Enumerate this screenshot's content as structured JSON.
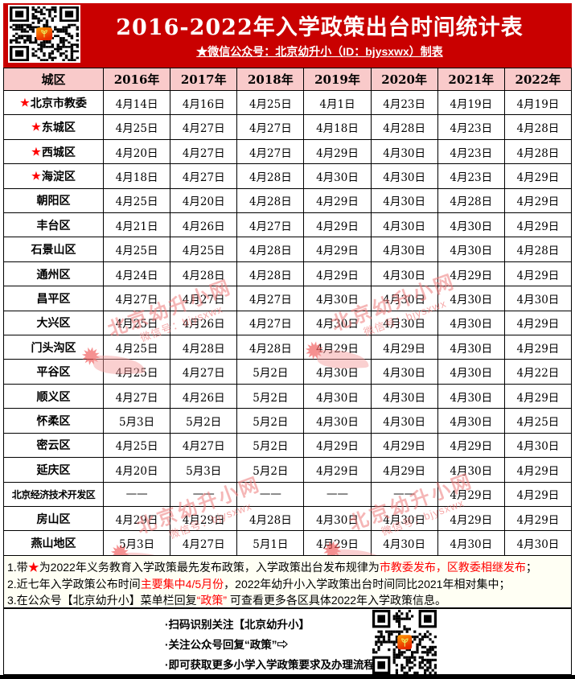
{
  "header": {
    "title": "2016-2022年入学政策出台时间统计表",
    "subtitle": "★微信公众号：北京幼升小（ID：bjysxwx）制表"
  },
  "colors": {
    "header_red": "#c90000",
    "table_header_pink": "#f9caca",
    "accent_red": "#ff0000",
    "watermark_pink": "#ec7a7a"
  },
  "icons": {
    "top_qr": "qr-code-icon",
    "bottom_qr": "qr-code-icon",
    "star": "star-icon",
    "arrow": "right-arrow-icon",
    "logo": "sprout-logo-icon"
  },
  "table": {
    "columns": [
      "城区",
      "2016年",
      "2017年",
      "2018年",
      "2019年",
      "2020年",
      "2021年",
      "2022年"
    ],
    "rows": [
      {
        "star": true,
        "district": "北京市教委",
        "dates": [
          "4月14日",
          "4月16日",
          "4月25日",
          "4月1日",
          "4月23日",
          "4月19日",
          "4月19日"
        ]
      },
      {
        "star": true,
        "district": "东城区",
        "dates": [
          "4月25日",
          "4月27日",
          "4月27日",
          "4月18日",
          "4月28日",
          "4月23日",
          "4月28日"
        ]
      },
      {
        "star": true,
        "district": "西城区",
        "dates": [
          "4月20日",
          "4月27日",
          "4月27日",
          "4月29日",
          "4月30日",
          "4月23日",
          "4月28日"
        ]
      },
      {
        "star": true,
        "district": "海淀区",
        "dates": [
          "4月18日",
          "4月27日",
          "4月28日",
          "4月30日",
          "4月30日",
          "4月23日",
          "4月29日"
        ]
      },
      {
        "star": false,
        "district": "朝阳区",
        "dates": [
          "4月25日",
          "4月20日",
          "4月28日",
          "4月29日",
          "4月30日",
          "4月28日",
          "4月29日"
        ]
      },
      {
        "star": false,
        "district": "丰台区",
        "dates": [
          "4月21日",
          "4月26日",
          "4月27日",
          "4月29日",
          "4月30日",
          "4月30日",
          "4月29日"
        ]
      },
      {
        "star": false,
        "district": "石景山区",
        "dates": [
          "4月25日",
          "4月25日",
          "4月28日",
          "4月29日",
          "4月30日",
          "4月30日",
          "4月28日"
        ]
      },
      {
        "star": false,
        "district": "通州区",
        "dates": [
          "4月24日",
          "4月28日",
          "4月28日",
          "4月29日",
          "4月30日",
          "4月29日",
          "4月29日"
        ]
      },
      {
        "star": false,
        "district": "昌平区",
        "dates": [
          "4月27日",
          "4月27日",
          "4月27日",
          "4月30日",
          "4月30日",
          "4月30日",
          "4月30日"
        ]
      },
      {
        "star": false,
        "district": "大兴区",
        "dates": [
          "4月25日",
          "4月26日",
          "4月27日",
          "4月30日",
          "4月30日",
          "4月30日",
          "4月29日"
        ]
      },
      {
        "star": false,
        "district": "门头沟区",
        "dates": [
          "4月25日",
          "4月28日",
          "4月28日",
          "4月29日",
          "4月29日",
          "4月30日",
          "4月29日"
        ]
      },
      {
        "star": false,
        "district": "平谷区",
        "dates": [
          "4月25日",
          "4月27日",
          "5月2日",
          "4月30日",
          "4月30日",
          "4月30日",
          "4月22日"
        ]
      },
      {
        "star": false,
        "district": "顺义区",
        "dates": [
          "4月27日",
          "4月26日",
          "5月2日",
          "4月30日",
          "4月30日",
          "4月30日",
          "4月29日"
        ]
      },
      {
        "star": false,
        "district": "怀柔区",
        "dates": [
          "5月3日",
          "5月2日",
          "5月2日",
          "4月30日",
          "4月30日",
          "4月30日",
          "4月25日"
        ]
      },
      {
        "star": false,
        "district": "密云区",
        "dates": [
          "4月25日",
          "4月27日",
          "5月2日",
          "4月29日",
          "4月29日",
          "4月29日",
          "4月30日"
        ]
      },
      {
        "star": false,
        "district": "延庆区",
        "dates": [
          "4月20日",
          "5月3日",
          "5月2日",
          "4月29日",
          "4月29日",
          "4月30日",
          "4月29日"
        ]
      },
      {
        "star": false,
        "district": "北京经济技术开发区",
        "dates": [
          "——",
          "——",
          "——",
          "——",
          "——",
          "4月29日",
          "4月29日"
        ]
      },
      {
        "star": false,
        "district": "房山区",
        "dates": [
          "4月29日",
          "4月29日",
          "4月28日",
          "4月30日",
          "4月30日",
          "4月29日",
          "4月29日"
        ]
      },
      {
        "star": false,
        "district": "燕山地区",
        "dates": [
          "5月3日",
          "4月27日",
          "5月1日",
          "4月29日",
          "4月30日",
          "4月30日",
          "4月30日"
        ]
      }
    ]
  },
  "notes": [
    [
      {
        "t": "1.带"
      },
      {
        "t": "★",
        "red": true
      },
      {
        "t": "为2022年义务教育入学政策最先发布政策，入学政策出台发布规律为"
      },
      {
        "t": "市教委发布，区教委相继发布",
        "red": true
      },
      {
        "t": "；"
      }
    ],
    [
      {
        "t": "2.近七年入学政策公布时间"
      },
      {
        "t": "主要集中4/5月份",
        "red": true
      },
      {
        "t": "，2022年幼升小入学政策出台时间同比2021年相对集中；"
      }
    ],
    [
      {
        "t": "3.在公众号【北京幼升小】菜单栏回复"
      },
      {
        "t": "“政策”",
        "red": true
      },
      {
        "t": " 可查看更多各区具体2022年入学政策信息。"
      }
    ]
  ],
  "bottom": {
    "lines": [
      "·扫码识别关注【北京幼升小】",
      "·关注公众号回复“政策”⇨",
      "·即可获取更多小学入学政策要求及办理流程"
    ]
  },
  "watermark": {
    "text": "北京幼升小网",
    "sub": "微信号：bjysxwx"
  }
}
